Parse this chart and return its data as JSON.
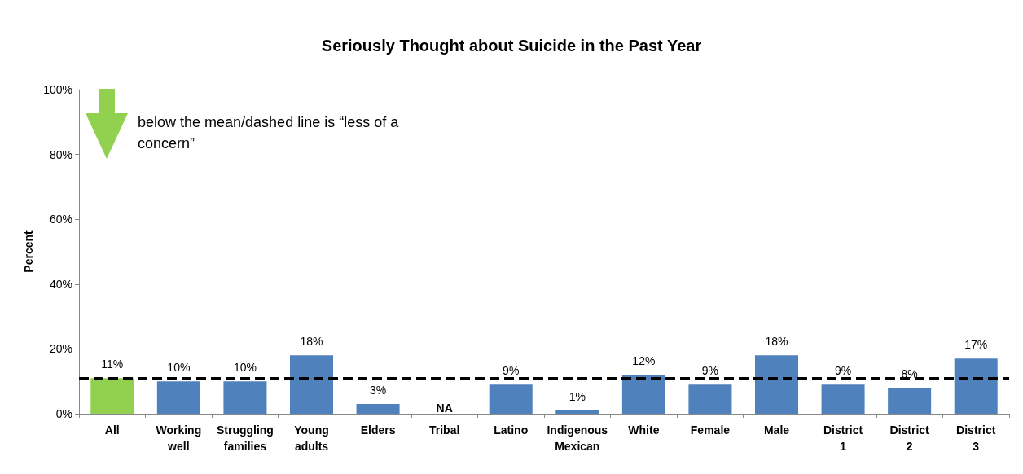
{
  "chart_data": {
    "type": "bar",
    "title": "Seriously Thought about Suicide in the Past Year",
    "ylabel": "Percent",
    "categories": [
      "All",
      "Working\nwell",
      "Struggling\nfamilies",
      "Young\nadults",
      "Elders",
      "Tribal",
      "Latino",
      "Indigenous\nMexican",
      "White",
      "Female",
      "Male",
      "District\n1",
      "District\n2",
      "District\n3"
    ],
    "values": [
      11,
      10,
      10,
      18,
      3,
      null,
      9,
      1,
      12,
      9,
      18,
      9,
      8,
      17
    ],
    "value_labels": [
      "11%",
      "10%",
      "10%",
      "18%",
      "3%",
      "NA",
      "9%",
      "1%",
      "12%",
      "9%",
      "18%",
      "9%",
      "8%",
      "17%"
    ],
    "colors": [
      "#92d050",
      "#4f81bd",
      "#4f81bd",
      "#4f81bd",
      "#4f81bd",
      "#4f81bd",
      "#4f81bd",
      "#4f81bd",
      "#4f81bd",
      "#4f81bd",
      "#4f81bd",
      "#4f81bd",
      "#4f81bd",
      "#4f81bd"
    ],
    "ylim": [
      0,
      100
    ],
    "yticks": [
      {
        "value": 0,
        "label": "0%"
      },
      {
        "value": 20,
        "label": "20%"
      },
      {
        "value": 40,
        "label": "40%"
      },
      {
        "value": 60,
        "label": "60%"
      },
      {
        "value": 80,
        "label": "80%"
      },
      {
        "value": 100,
        "label": "100%"
      }
    ],
    "ref_lines": [
      {
        "axis": "y",
        "value": 11,
        "color": "#000000",
        "line_style": "dashed"
      }
    ],
    "annotations": [
      "below the mean/dashed line is “less of a\nconcern”"
    ],
    "grid": false
  }
}
